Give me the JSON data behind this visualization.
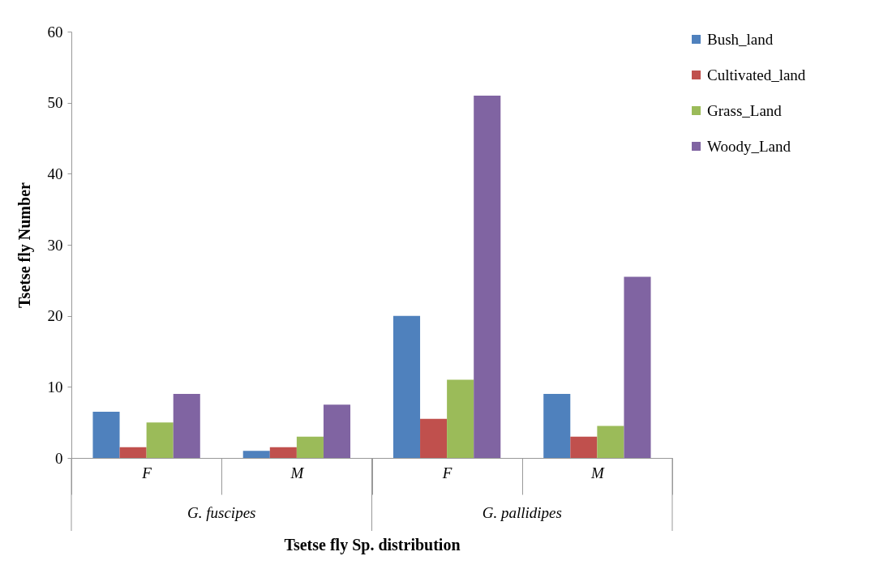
{
  "chart_data": {
    "type": "bar",
    "categories": [
      "F",
      "M",
      "F",
      "M"
    ],
    "series": [
      {
        "name": "Bush_land",
        "color": "#4f81bd",
        "values": [
          6.5,
          1,
          20,
          9
        ]
      },
      {
        "name": "Cultivated_land",
        "color": "#c0504d",
        "values": [
          1.5,
          1.5,
          5.5,
          3
        ]
      },
      {
        "name": "Grass_Land",
        "color": "#9bbb59",
        "values": [
          5,
          3,
          11,
          4.5
        ]
      },
      {
        "name": "Woody_Land",
        "color": "#8064a2",
        "values": [
          9,
          7.5,
          51,
          25.5
        ]
      }
    ],
    "xlabel": "Tsetse fly Sp. distribution",
    "ylabel": "Tsetse fly Number",
    "annotations": [
      "G. fuscipes",
      "G. pallidipes"
    ],
    "ylim": [
      0,
      60
    ],
    "yticks": [
      0,
      10,
      20,
      30,
      40,
      50,
      60
    ],
    "grid": false,
    "legend": "right"
  }
}
